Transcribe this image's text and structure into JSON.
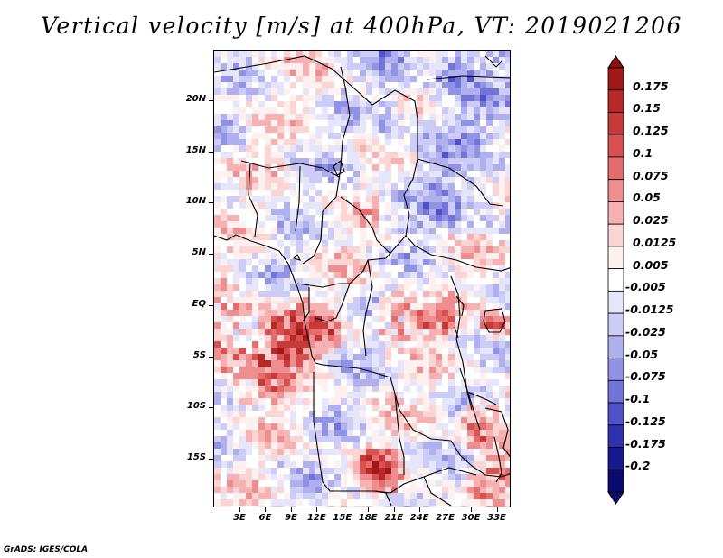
{
  "title": "Vertical velocity [m/s] at 400hPa, VT: 2019021206",
  "map": {
    "variable": "Vertical velocity",
    "units": "m/s",
    "level": "400hPa",
    "valid_time": "2019021206",
    "lat_labels": [
      "20N",
      "15N",
      "10N",
      "5N",
      "EQ",
      "5S",
      "10S",
      "15S"
    ],
    "lon_labels": [
      "3E",
      "6E",
      "9E",
      "12E",
      "15E",
      "18E",
      "21E",
      "24E",
      "27E",
      "30E",
      "33E"
    ]
  },
  "colorbar": {
    "labels": [
      "0.175",
      "0.15",
      "0.125",
      "0.1",
      "0.075",
      "0.05",
      "0.025",
      "0.0125",
      "0.005",
      "-0.005",
      "-0.0125",
      "-0.025",
      "-0.05",
      "-0.075",
      "-0.1",
      "-0.125",
      "-0.175",
      "-0.2"
    ],
    "colors": [
      "#a01818",
      "#b82828",
      "#c83a3a",
      "#d85050",
      "#e46c6c",
      "#ee8e8e",
      "#f6b2b2",
      "#fbd4d4",
      "#fff0f0",
      "#ffffff",
      "#e6e6fb",
      "#ccccf6",
      "#b0b0ee",
      "#9292e4",
      "#7474d8",
      "#5050c8",
      "#3030b0",
      "#181890",
      "#0a0a70"
    ],
    "top_color": "#8c1010",
    "bottom_color": "#0a0a70"
  },
  "credit": "GrADS: IGES/COLA"
}
